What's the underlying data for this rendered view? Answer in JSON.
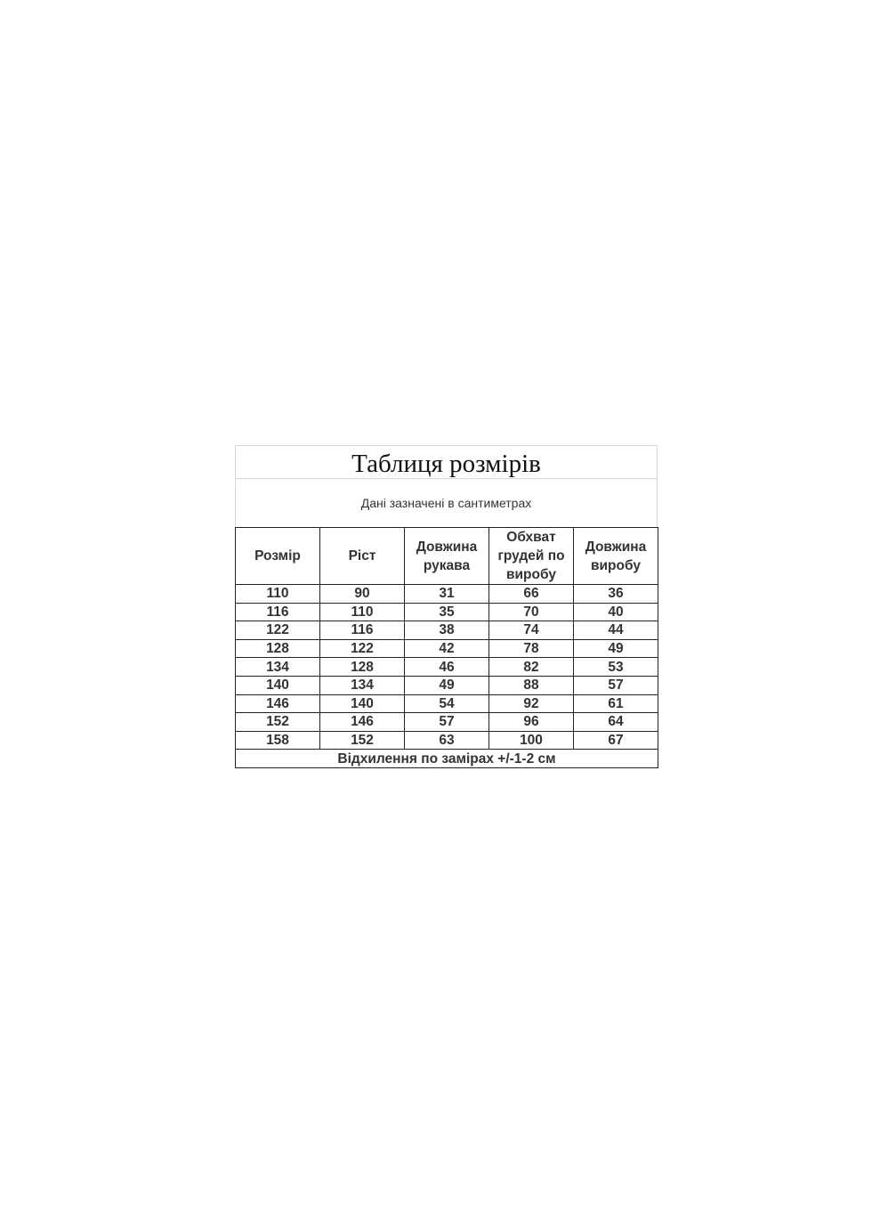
{
  "title": "Таблиця розмірів",
  "subtitle": "Дані зазначені в сантиметрах",
  "headers": [
    "Розмір",
    "Ріст",
    "Довжина рукава",
    "Обхват грудей по виробу",
    "Довжина виробу"
  ],
  "rows": [
    [
      "110",
      "90",
      "31",
      "66",
      "36"
    ],
    [
      "116",
      "110",
      "35",
      "70",
      "40"
    ],
    [
      "122",
      "116",
      "38",
      "74",
      "44"
    ],
    [
      "128",
      "122",
      "42",
      "78",
      "49"
    ],
    [
      "134",
      "128",
      "46",
      "82",
      "53"
    ],
    [
      "140",
      "134",
      "49",
      "88",
      "57"
    ],
    [
      "146",
      "140",
      "54",
      "92",
      "61"
    ],
    [
      "152",
      "146",
      "57",
      "96",
      "64"
    ],
    [
      "158",
      "152",
      "63",
      "100",
      "67"
    ]
  ],
  "footer": "Відхилення по замірах +/-1-2 см"
}
